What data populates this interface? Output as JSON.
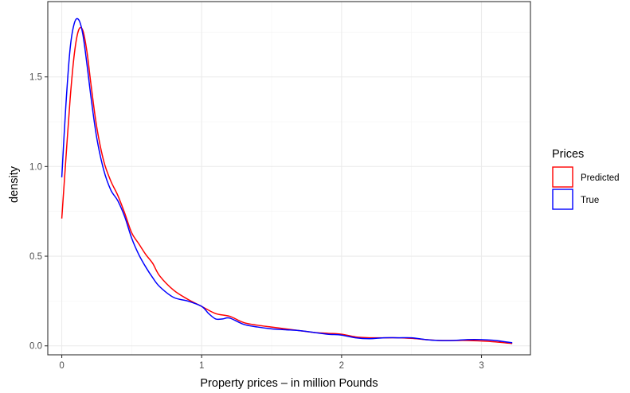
{
  "chart_data": {
    "type": "line",
    "title": "",
    "xlabel": "Property prices – in million Pounds",
    "ylabel": "density",
    "xlim": [
      -0.1,
      3.35
    ],
    "ylim": [
      -0.05,
      1.92
    ],
    "x_ticks": [
      0,
      1,
      2,
      3
    ],
    "x_tick_labels": [
      "0",
      "1",
      "2",
      "3"
    ],
    "y_ticks": [
      0,
      0.5,
      1,
      1.5
    ],
    "y_tick_labels": [
      "0.0",
      "0.5",
      "1.0",
      "1.5"
    ],
    "grid": true,
    "legend": {
      "title": "Prices",
      "placement": "right",
      "entries": [
        {
          "label": "Predicted",
          "color": "#ff0000"
        },
        {
          "label": "True",
          "color": "#0000ff"
        }
      ]
    },
    "series": [
      {
        "name": "Predicted",
        "color": "#ff0000",
        "x": [
          0,
          0.03,
          0.06,
          0.09,
          0.12,
          0.15,
          0.18,
          0.21,
          0.25,
          0.3,
          0.35,
          0.4,
          0.45,
          0.5,
          0.55,
          0.6,
          0.65,
          0.7,
          0.8,
          0.9,
          1.0,
          1.1,
          1.2,
          1.3,
          1.4,
          1.5,
          1.6,
          1.7,
          1.8,
          1.9,
          2.0,
          2.1,
          2.2,
          2.3,
          2.4,
          2.5,
          2.6,
          2.7,
          2.8,
          2.9,
          3.0,
          3.1,
          3.22
        ],
        "y": [
          0.71,
          1.05,
          1.38,
          1.63,
          1.76,
          1.76,
          1.64,
          1.45,
          1.22,
          1.03,
          0.92,
          0.84,
          0.74,
          0.63,
          0.57,
          0.51,
          0.46,
          0.39,
          0.31,
          0.26,
          0.22,
          0.18,
          0.165,
          0.13,
          0.115,
          0.105,
          0.095,
          0.085,
          0.075,
          0.07,
          0.065,
          0.05,
          0.045,
          0.045,
          0.045,
          0.042,
          0.035,
          0.03,
          0.03,
          0.03,
          0.027,
          0.022,
          0.013
        ]
      },
      {
        "name": "True",
        "color": "#0000ff",
        "x": [
          0,
          0.03,
          0.06,
          0.09,
          0.12,
          0.15,
          0.18,
          0.21,
          0.25,
          0.3,
          0.35,
          0.4,
          0.45,
          0.5,
          0.55,
          0.6,
          0.65,
          0.7,
          0.8,
          0.9,
          1.0,
          1.05,
          1.1,
          1.15,
          1.2,
          1.3,
          1.4,
          1.5,
          1.6,
          1.7,
          1.8,
          1.9,
          2.0,
          2.1,
          2.2,
          2.3,
          2.4,
          2.5,
          2.6,
          2.7,
          2.8,
          2.9,
          3.0,
          3.1,
          3.22
        ],
        "y": [
          0.94,
          1.35,
          1.66,
          1.8,
          1.82,
          1.74,
          1.57,
          1.38,
          1.16,
          0.98,
          0.87,
          0.81,
          0.72,
          0.6,
          0.51,
          0.44,
          0.38,
          0.33,
          0.27,
          0.25,
          0.22,
          0.18,
          0.15,
          0.15,
          0.155,
          0.12,
          0.105,
          0.095,
          0.09,
          0.085,
          0.075,
          0.065,
          0.06,
          0.045,
          0.04,
          0.045,
          0.045,
          0.045,
          0.035,
          0.03,
          0.03,
          0.035,
          0.035,
          0.03,
          0.017
        ]
      }
    ]
  }
}
